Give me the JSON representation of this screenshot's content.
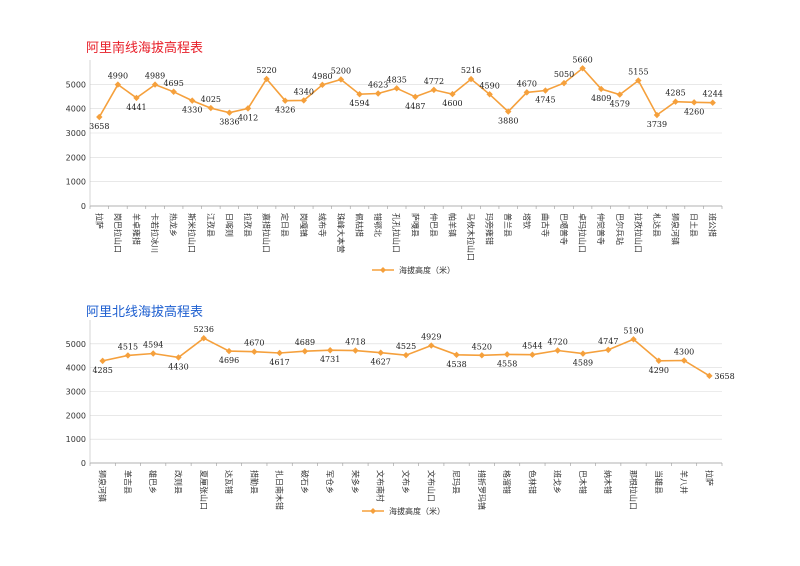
{
  "chart_data": [
    {
      "type": "line",
      "title": "阿里南线海拔高程表",
      "title_color": "#e8202a",
      "series": [
        {
          "name": "海拔高度（米）",
          "color": "#f5a03c"
        }
      ],
      "categories": [
        "拉萨",
        "岗巴拉山口",
        "羊卓雍措",
        "卡若拉冰川",
        "热龙乡",
        "斯米拉山口",
        "江孜县",
        "日喀则",
        "拉孜县",
        "嘉措拉山口",
        "定日县",
        "岗嘎镇",
        "绒布寺",
        "珠峰大本营",
        "佩枯措",
        "错鄂北",
        "孔孔拉山口",
        "萨嘎县",
        "仲巴县",
        "帕羊镇",
        "马攸木拉山口",
        "玛旁雍错",
        "普兰县",
        "塔钦",
        "曲古寺",
        "巴噶普寺",
        "卓玛拉山口",
        "仲觉普寺",
        "巴尔兵站",
        "拉孜拉山口",
        "札达县",
        "狮泉河镇",
        "日土县",
        "班公措"
      ],
      "values": [
        3658,
        4990,
        4441,
        4989,
        4695,
        4330,
        4025,
        3836,
        4012,
        5220,
        4326,
        4340,
        4980,
        5200,
        4594,
        4623,
        4835,
        4487,
        4772,
        4600,
        5216,
        4590,
        3880,
        4670,
        4745,
        5050,
        5660,
        4809,
        4579,
        5155,
        3739,
        4285,
        4260,
        4244
      ],
      "label_position": [
        "below",
        "above",
        "below",
        "above",
        "above",
        "below",
        "above",
        "below",
        "below",
        "above",
        "below",
        "above",
        "above",
        "above",
        "below",
        "above",
        "above",
        "below",
        "above",
        "below",
        "above",
        "above",
        "below",
        "above",
        "below",
        "above",
        "above",
        "below",
        "below",
        "above",
        "below",
        "above",
        "below",
        "above"
      ],
      "ylim": [
        0,
        6000
      ],
      "yticks": [
        "0",
        "1000",
        "2000",
        "3000",
        "4000",
        "5000"
      ],
      "legend": "bottom",
      "grid": true
    },
    {
      "type": "line",
      "title": "阿里北线海拔高程表",
      "title_color": "#1e5fd0",
      "series": [
        {
          "name": "海拔高度（米）",
          "color": "#f5a03c"
        }
      ],
      "categories": [
        "狮泉河镇",
        "革吉县",
        "雄巴乡",
        "改则县",
        "夏厘张山口",
        "达瓦错",
        "措勤县",
        "扎日南木错",
        "破石乡",
        "军仓乡",
        "荣多乡",
        "文布南村",
        "文布乡",
        "文布山口",
        "尼玛县",
        "措折罗玛镇",
        "格溜错",
        "色林错",
        "班戈乡",
        "巴木错",
        "纳木错",
        "那根拉山口",
        "当雄县",
        "羊八井",
        "拉萨"
      ],
      "values": [
        4285,
        4515,
        4594,
        4430,
        5236,
        4696,
        4670,
        4617,
        4689,
        4731,
        4718,
        4627,
        4525,
        4929,
        4538,
        4520,
        4558,
        4544,
        4720,
        4589,
        4747,
        5190,
        4290,
        4300,
        3658
      ],
      "label_position": [
        "below",
        "above",
        "above",
        "below",
        "above",
        "below",
        "above",
        "below",
        "above",
        "below",
        "above",
        "below",
        "above",
        "above",
        "below",
        "above",
        "below",
        "above",
        "above",
        "below",
        "above",
        "above",
        "below",
        "above",
        "right"
      ],
      "ylim": [
        0,
        6000
      ],
      "yticks": [
        "0",
        "1000",
        "2000",
        "3000",
        "4000",
        "5000"
      ],
      "legend": "bottom",
      "grid": true
    }
  ]
}
